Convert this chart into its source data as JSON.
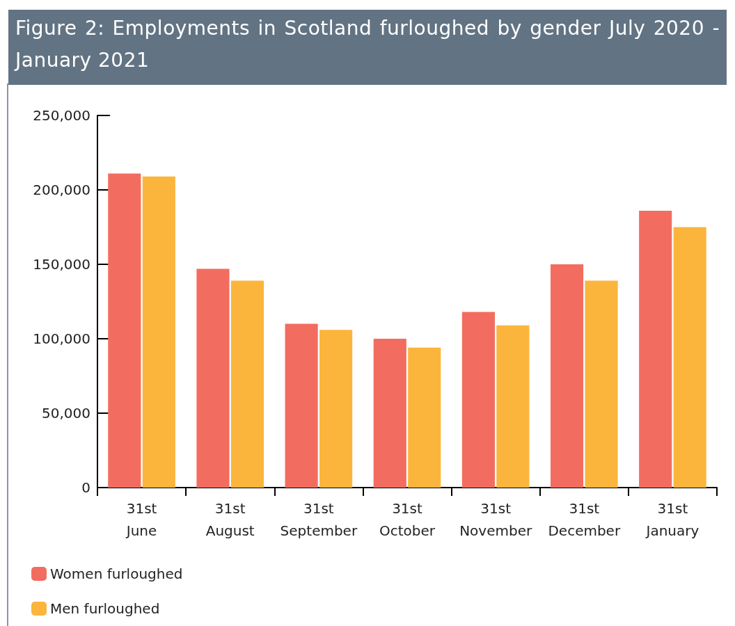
{
  "chart_data": {
    "type": "bar",
    "title": "Figure 2: Employments in Scotland furloughed by gender July 2020 - January 2021",
    "categories": [
      "31st\nJune",
      "31st\nAugust",
      "31st\nSeptember",
      "31st\nOctober",
      "31st\nNovember",
      "31st\nDecember",
      "31st\nJanuary"
    ],
    "series": [
      {
        "name": "Women furloughed",
        "color": "#f26d5f",
        "values": [
          211000,
          147000,
          110000,
          100000,
          118000,
          150000,
          186000
        ]
      },
      {
        "name": "Men furloughed",
        "color": "#fbb53c",
        "values": [
          209000,
          139000,
          106000,
          94000,
          109000,
          139000,
          175000
        ]
      }
    ],
    "ylim": [
      0,
      250000
    ],
    "yticks": [
      0,
      {
        "value": 50000,
        "label": "50,000"
      },
      {
        "value": 100000,
        "label": "100,000"
      },
      {
        "value": 150000,
        "label": "150,000"
      },
      {
        "value": 200000,
        "label": "200,000"
      },
      {
        "value": 250000,
        "label": "250,000"
      }
    ],
    "grid": false,
    "legend": "bottom left"
  }
}
